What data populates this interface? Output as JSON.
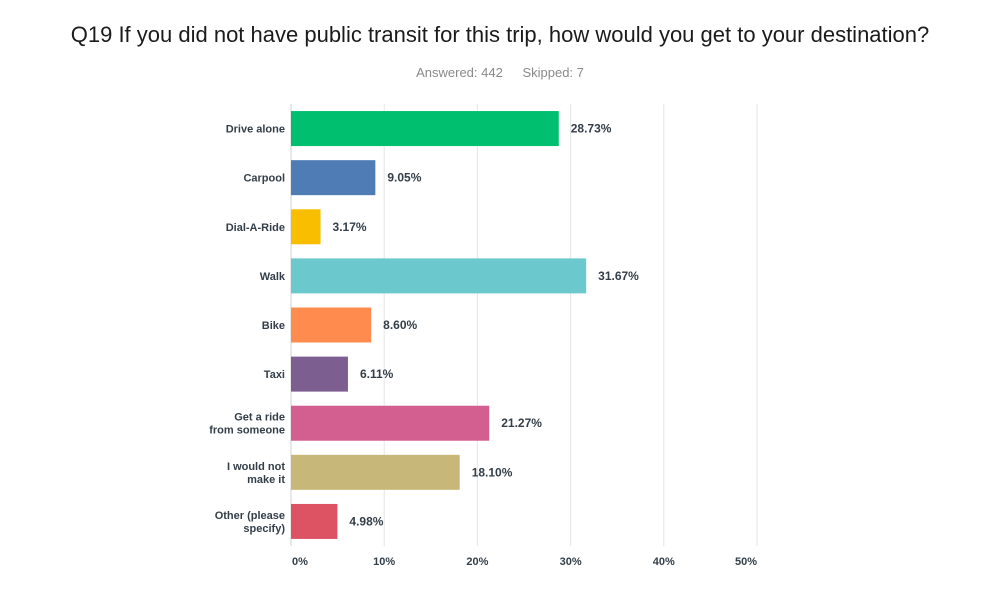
{
  "header": {
    "title": "Q19 If you did not have public transit for this trip, how would you get to your destination?",
    "answered": "Answered: 442",
    "skipped": "Skipped: 7"
  },
  "chart_data": {
    "type": "bar",
    "orientation": "horizontal",
    "categories": [
      [
        "Drive alone"
      ],
      [
        "Carpool"
      ],
      [
        "Dial-A-Ride"
      ],
      [
        "Walk"
      ],
      [
        "Bike"
      ],
      [
        "Taxi"
      ],
      [
        "Get a ride",
        "from someone"
      ],
      [
        "I would not",
        "make it"
      ],
      [
        "Other (please",
        "specify)"
      ]
    ],
    "values": [
      28.73,
      9.05,
      3.17,
      31.67,
      8.6,
      6.11,
      21.27,
      18.1,
      4.98
    ],
    "value_labels": [
      "28.73%",
      "9.05%",
      "3.17%",
      "31.67%",
      "8.60%",
      "6.11%",
      "21.27%",
      "18.10%",
      "4.98%"
    ],
    "colors": [
      "#00bf6f",
      "#507cb6",
      "#f9be00",
      "#6bc8cd",
      "#ff8b4f",
      "#7d5e90",
      "#d25f90",
      "#c7b879",
      "#dd5363"
    ],
    "xlim": [
      0,
      50
    ],
    "ticks": [
      0,
      10,
      20,
      30,
      40,
      50
    ],
    "tick_labels": [
      "0%",
      "10%",
      "20%",
      "30%",
      "40%",
      "50%"
    ],
    "grid": true
  }
}
